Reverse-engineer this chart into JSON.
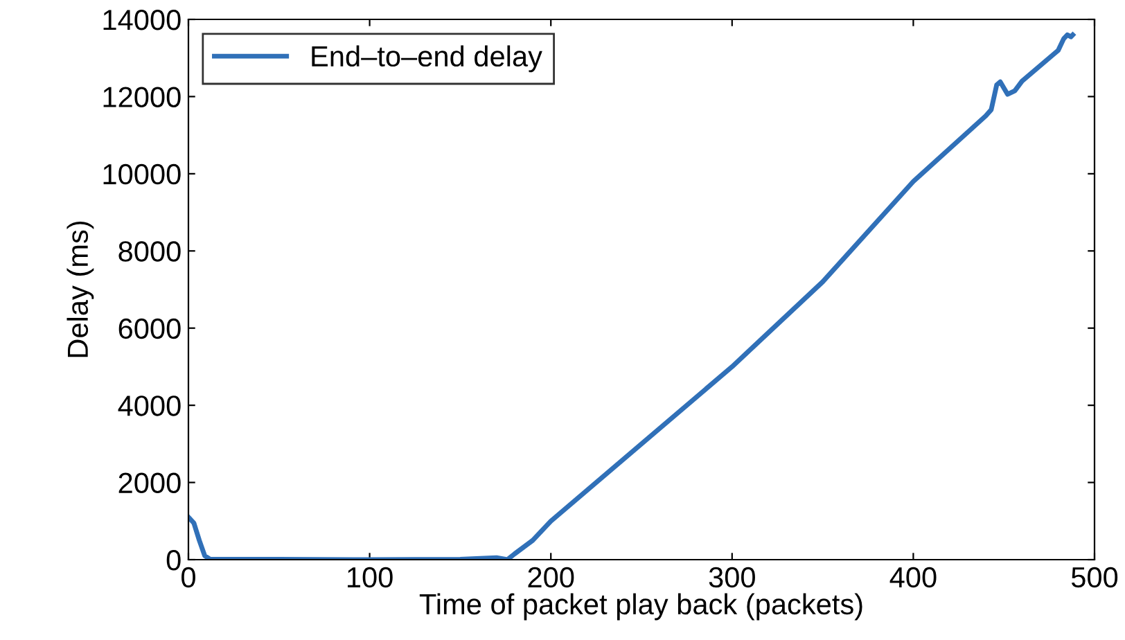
{
  "chart_data": {
    "type": "line",
    "xlabel": "Time of packet play back (packets)",
    "ylabel": "Delay (ms)",
    "series": [
      {
        "name": "End–to–end delay",
        "color": "#3070b8",
        "x": [
          0,
          3,
          6,
          9,
          12,
          50,
          100,
          150,
          170,
          176,
          180,
          190,
          200,
          250,
          300,
          350,
          400,
          440,
          443,
          446,
          448,
          452,
          456,
          460,
          480,
          483,
          485,
          487,
          488
        ],
        "values": [
          1100,
          950,
          500,
          100,
          10,
          10,
          0,
          10,
          50,
          0,
          150,
          500,
          1000,
          3000,
          5000,
          7200,
          9800,
          11500,
          11660,
          12300,
          12380,
          12060,
          12150,
          12400,
          13200,
          13500,
          13600,
          13550,
          13600
        ]
      }
    ],
    "xlim": [
      0,
      500
    ],
    "ylim": [
      0,
      14000
    ],
    "xticks": [
      0,
      100,
      200,
      300,
      400,
      500
    ],
    "yticks": [
      0,
      2000,
      4000,
      6000,
      8000,
      10000,
      12000,
      14000
    ],
    "grid": false,
    "legend": "top left",
    "line_style": "solid",
    "marker": "none"
  }
}
